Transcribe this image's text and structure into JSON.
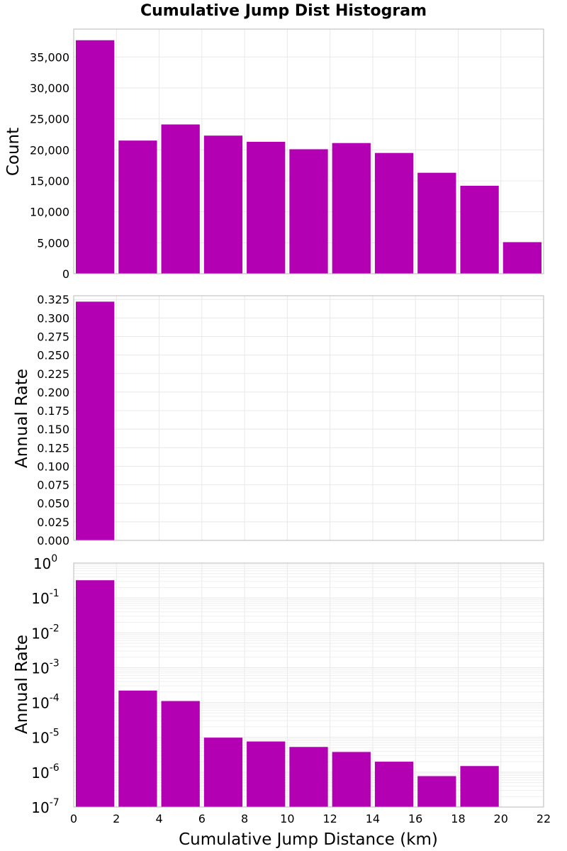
{
  "chart_data": {
    "type": "bar",
    "title": "Cumulative Jump Dist Histogram",
    "xlabel": "Cumulative Jump Distance (km)",
    "xlim": [
      0,
      22
    ],
    "x_ticks": [
      "0",
      "2",
      "4",
      "6",
      "8",
      "10",
      "12",
      "14",
      "16",
      "18",
      "20",
      "22"
    ],
    "bar_color": "#b200b2",
    "bins": [
      {
        "start": 0,
        "end": 2
      },
      {
        "start": 2,
        "end": 4
      },
      {
        "start": 4,
        "end": 6
      },
      {
        "start": 6,
        "end": 8
      },
      {
        "start": 8,
        "end": 10
      },
      {
        "start": 10,
        "end": 12
      },
      {
        "start": 12,
        "end": 14
      },
      {
        "start": 14,
        "end": 16
      },
      {
        "start": 16,
        "end": 18
      },
      {
        "start": 18,
        "end": 20
      },
      {
        "start": 20,
        "end": 22
      }
    ],
    "panels": [
      {
        "ylabel": "Count",
        "scale": "linear",
        "ylim": [
          0,
          39500
        ],
        "y_ticks": [
          {
            "value": 0,
            "label": "0"
          },
          {
            "value": 5000,
            "label": "5,000"
          },
          {
            "value": 10000,
            "label": "10,000"
          },
          {
            "value": 15000,
            "label": "15,000"
          },
          {
            "value": 20000,
            "label": "20,000"
          },
          {
            "value": 25000,
            "label": "25,000"
          },
          {
            "value": 30000,
            "label": "30,000"
          },
          {
            "value": 35000,
            "label": "35,000"
          }
        ],
        "values": [
          37700,
          21500,
          24100,
          22300,
          21300,
          20100,
          21100,
          19500,
          16300,
          14200,
          5100
        ]
      },
      {
        "ylabel": "Annual Rate",
        "scale": "linear",
        "ylim": [
          0,
          0.33
        ],
        "y_ticks": [
          {
            "value": 0,
            "label": "0.000"
          },
          {
            "value": 0.025,
            "label": "0.025"
          },
          {
            "value": 0.05,
            "label": "0.050"
          },
          {
            "value": 0.075,
            "label": "0.075"
          },
          {
            "value": 0.1,
            "label": "0.100"
          },
          {
            "value": 0.125,
            "label": "0.125"
          },
          {
            "value": 0.15,
            "label": "0.150"
          },
          {
            "value": 0.175,
            "label": "0.175"
          },
          {
            "value": 0.2,
            "label": "0.200"
          },
          {
            "value": 0.225,
            "label": "0.225"
          },
          {
            "value": 0.25,
            "label": "0.250"
          },
          {
            "value": 0.275,
            "label": "0.275"
          },
          {
            "value": 0.3,
            "label": "0.300"
          },
          {
            "value": 0.325,
            "label": "0.325"
          }
        ],
        "values": [
          0.322,
          0.00022,
          0.00011,
          9.8e-06,
          7.6e-06,
          5.3e-06,
          3.8e-06,
          2e-06,
          7.7e-07,
          1.5e-06,
          0
        ]
      },
      {
        "ylabel": "Annual Rate",
        "scale": "log",
        "ylim": [
          1e-07,
          1
        ],
        "y_ticks": [
          {
            "value": 1,
            "base": "10",
            "exp": "0"
          },
          {
            "value": 0.1,
            "base": "10",
            "exp": "-1"
          },
          {
            "value": 0.01,
            "base": "10",
            "exp": "-2"
          },
          {
            "value": 0.001,
            "base": "10",
            "exp": "-3"
          },
          {
            "value": 0.0001,
            "base": "10",
            "exp": "-4"
          },
          {
            "value": 1e-05,
            "base": "10",
            "exp": "-5"
          },
          {
            "value": 1e-06,
            "base": "10",
            "exp": "-6"
          },
          {
            "value": 1e-07,
            "base": "10",
            "exp": "-7"
          }
        ],
        "values": [
          0.322,
          0.00022,
          0.00011,
          9.8e-06,
          7.6e-06,
          5.3e-06,
          3.8e-06,
          2e-06,
          7.7e-07,
          1.5e-06,
          0
        ]
      }
    ]
  }
}
